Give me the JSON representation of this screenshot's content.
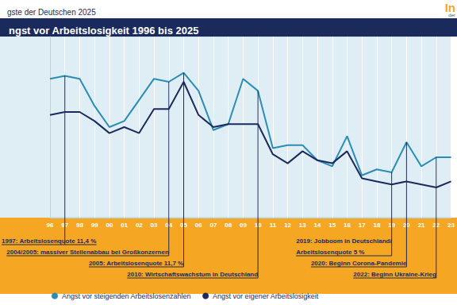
{
  "chart_data": {
    "type": "line",
    "title": "ngst vor Arbeitslosigkeit 1996 bis 2025",
    "subtitle": "gste der Deutschen 2025",
    "logo": [
      "In",
      "der"
    ],
    "categories": [
      "96",
      "97",
      "98",
      "99",
      "00",
      "01",
      "02",
      "03",
      "04",
      "05",
      "06",
      "07",
      "08",
      "09",
      "10",
      "11",
      "12",
      "13",
      "14",
      "15",
      "16",
      "17",
      "18",
      "19",
      "20",
      "21",
      "22",
      "23"
    ],
    "series": [
      {
        "name": "Angst vor steigenden Arbeitslosenzahlen",
        "color": "#2b8cb5",
        "values": [
          63,
          64,
          63,
          54,
          47,
          49,
          56,
          63,
          62,
          65,
          59,
          46,
          48,
          63,
          59,
          40,
          41,
          41,
          36,
          34,
          44,
          31,
          33,
          32,
          42,
          34,
          37,
          37
        ]
      },
      {
        "name": "Angst vor eigener Arbeitslosigkeit",
        "color": "#1b2a5c",
        "values": [
          51,
          52,
          52,
          49,
          45,
          47,
          45,
          53,
          53,
          62,
          51,
          47,
          48,
          48,
          48,
          38,
          35,
          39,
          36,
          35,
          39,
          30,
          29,
          28,
          29,
          28,
          27,
          29
        ]
      }
    ],
    "ylim": [
      17,
      77
    ],
    "tick_labels": "x",
    "grid": true,
    "legend": "bottom-left",
    "marker": "none",
    "annotations": [
      {
        "category": "97",
        "lines": [
          "1997: Arbeitslosenquote 11,4 %"
        ]
      },
      {
        "category": "04",
        "lines": [
          "2004/2005: massiver Stellenabbau bei Großkonzernen"
        ]
      },
      {
        "category": "05",
        "lines": [
          "2005: Arbeitslosenquote 11,7 %"
        ]
      },
      {
        "category": "10",
        "lines": [
          "2010: Wirtschaftswachstum in Deutschland"
        ]
      },
      {
        "category": "19",
        "lines": [
          "2019: Jobboom in Deutschland/",
          "Arbeitslosenquote 5 %"
        ]
      },
      {
        "category": "20",
        "lines": [
          "2020: Beginn Corona-Pandemie"
        ]
      },
      {
        "category": "22",
        "lines": [
          "2022: Beginn Ukraine-Krieg"
        ]
      }
    ]
  }
}
